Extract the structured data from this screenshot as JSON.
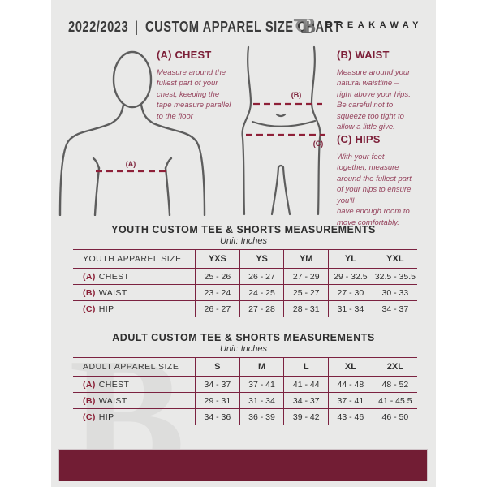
{
  "colors": {
    "panel_bg": "#e9e9e8",
    "maroon_bar": "#721d34",
    "maroon_heading": "#7c1f38",
    "maroon_line": "#7b2240",
    "body_outline_gray": "#5d5d5d",
    "header_text": "#3b3b3b"
  },
  "header": {
    "edition": "2022/2023",
    "divider": "|",
    "title": "CUSTOM APPAREL SIZE CHART",
    "brand": "BREAKAWAY",
    "logo_icon": "breakaway-b-logo"
  },
  "guide": {
    "chest": {
      "heading": "(A) CHEST",
      "marker": "(A)",
      "body": "Measure around the\nfullest part of your\nchest, keeping the\ntape measure parallel\nto the floor"
    },
    "waist": {
      "heading": "(B) WAIST",
      "marker": "(B)",
      "body": "Measure around your\nnatural waistline –\nright above your hips.\nBe careful not to\nsqueeze too tight to\nallow a little give."
    },
    "hips": {
      "heading": "(C) HIPS",
      "marker": "(C)",
      "body": "With your feet\ntogether, measure\naround the fullest part\nof your hips to ensure\nyou'll\nhave enough room to\nmove comfortably."
    }
  },
  "tables": [
    {
      "id": "youth",
      "title": "YOUTH CUSTOM TEE & SHORTS MEASUREMENTS",
      "unit": "Unit: Inches",
      "columns": [
        "YOUTH APPAREL SIZE",
        "YXS",
        "YS",
        "YM",
        "YL",
        "YXL"
      ],
      "rows": [
        {
          "prefix": "(A)",
          "label": "CHEST",
          "values": [
            "25 - 26",
            "26 - 27",
            "27 - 29",
            "29 - 32.5",
            "32.5 - 35.5"
          ]
        },
        {
          "prefix": "(B)",
          "label": "WAIST",
          "values": [
            "23 - 24",
            "24 - 25",
            "25 - 27",
            "27 - 30",
            "30 - 33"
          ]
        },
        {
          "prefix": "(C)",
          "label": "HIP",
          "values": [
            "26 - 27",
            "27 - 28",
            "28 - 31",
            "31 - 34",
            "34 - 37"
          ]
        }
      ]
    },
    {
      "id": "adult",
      "title": "ADULT CUSTOM TEE & SHORTS MEASUREMENTS",
      "unit": "Unit: Inches",
      "columns": [
        "ADULT APPAREL SIZE",
        "S",
        "M",
        "L",
        "XL",
        "2XL"
      ],
      "rows": [
        {
          "prefix": "(A)",
          "label": "CHEST",
          "values": [
            "34 - 37",
            "37 - 41",
            "41 - 44",
            "44 - 48",
            "48 - 52"
          ]
        },
        {
          "prefix": "(B)",
          "label": "WAIST",
          "values": [
            "29 - 31",
            "31 - 34",
            "34 - 37",
            "37 - 41",
            "41 - 45.5"
          ]
        },
        {
          "prefix": "(C)",
          "label": "HIP",
          "values": [
            "34 - 36",
            "36 - 39",
            "39 - 42",
            "43 - 46",
            "46 - 50"
          ]
        }
      ]
    }
  ],
  "watermark": "B"
}
